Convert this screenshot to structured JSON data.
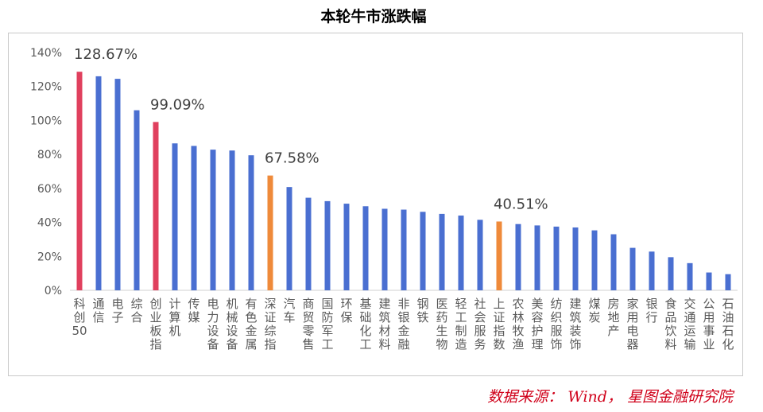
{
  "chart_data": {
    "type": "bar",
    "title": "本轮牛市涨跌幅",
    "xlabel": "",
    "ylabel": "",
    "ylim": [
      0,
      140
    ],
    "yticks": [
      "0%",
      "20%",
      "40%",
      "60%",
      "80%",
      "100%",
      "120%",
      "140%"
    ],
    "grid": false,
    "categories": [
      "科创50",
      "通信",
      "电子",
      "综合",
      "创业板指",
      "计算机",
      "传媒",
      "电力设备",
      "机械设备",
      "有色金属",
      "深证综指",
      "汽车",
      "商贸零售",
      "国防军工",
      "环保",
      "基础化工",
      "建筑材料",
      "非银金融",
      "钢铁",
      "医药生物",
      "轻工制造",
      "社会服务",
      "上证指数",
      "农林牧渔",
      "美容护理",
      "纺织服饰",
      "建筑装饰",
      "煤炭",
      "房地产",
      "家用电器",
      "银行",
      "食品饮料",
      "交通运输",
      "公用事业",
      "石油石化"
    ],
    "values": [
      128.67,
      126,
      124.5,
      106,
      99.09,
      86.5,
      85,
      82.8,
      82.3,
      79.5,
      67.58,
      60.8,
      54.5,
      52.5,
      51,
      49.5,
      48,
      47.5,
      46.2,
      45,
      44,
      41.5,
      40.51,
      39,
      38.2,
      37.5,
      37,
      35.3,
      33,
      25,
      22.8,
      19.5,
      16,
      10.5,
      9.5
    ],
    "colors": [
      "#e0405e",
      "#4a6fd1",
      "#4a6fd1",
      "#4a6fd1",
      "#e0405e",
      "#4a6fd1",
      "#4a6fd1",
      "#4a6fd1",
      "#4a6fd1",
      "#4a6fd1",
      "#ef8a3a",
      "#4a6fd1",
      "#4a6fd1",
      "#4a6fd1",
      "#4a6fd1",
      "#4a6fd1",
      "#4a6fd1",
      "#4a6fd1",
      "#4a6fd1",
      "#4a6fd1",
      "#4a6fd1",
      "#4a6fd1",
      "#ef8a3a",
      "#4a6fd1",
      "#4a6fd1",
      "#4a6fd1",
      "#4a6fd1",
      "#4a6fd1",
      "#4a6fd1",
      "#4a6fd1",
      "#4a6fd1",
      "#4a6fd1",
      "#4a6fd1",
      "#4a6fd1",
      "#4a6fd1"
    ],
    "data_labels": [
      {
        "index": 0,
        "text": "128.67%"
      },
      {
        "index": 4,
        "text": "99.09%"
      },
      {
        "index": 10,
        "text": "67.58%"
      },
      {
        "index": 22,
        "text": "40.51%"
      }
    ]
  },
  "source": "数据来源： Wind， 星图金融研究院"
}
